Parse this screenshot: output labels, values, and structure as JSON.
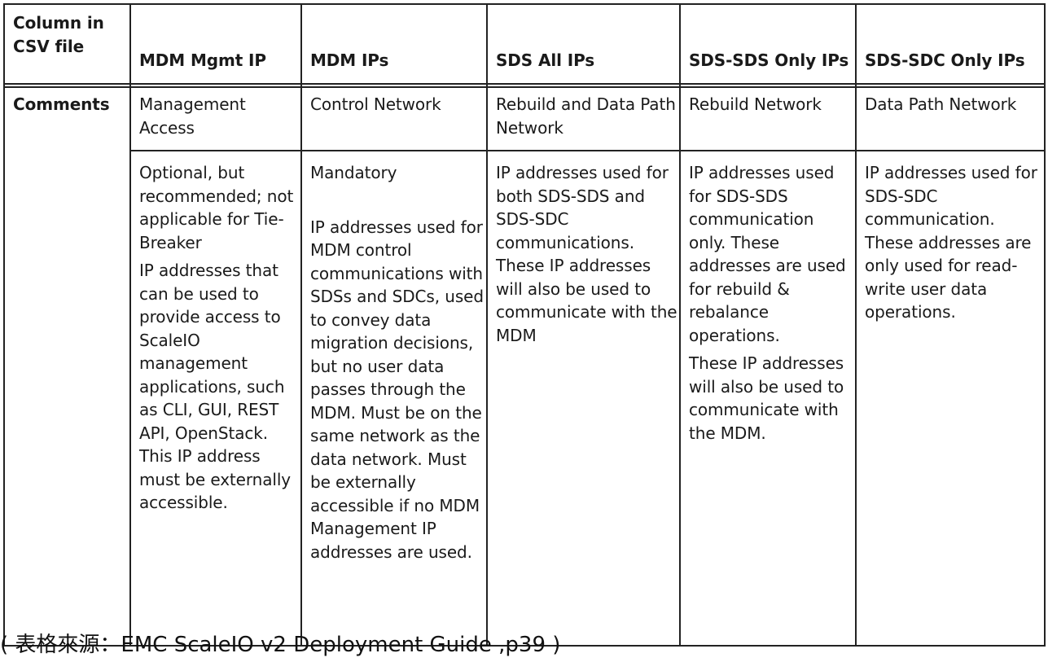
{
  "table": {
    "corner_label": "Column in CSV file",
    "headers": [
      "MDM Mgmt IP",
      "MDM IPs",
      "SDS All IPs",
      "SDS-SDS Only IPs",
      "SDS-SDC Only IPs"
    ],
    "row_label": "Comments",
    "network_roles": [
      "Management Access",
      "Control Network",
      "Rebuild and Data Path Network",
      "Rebuild Network",
      "Data Path Network"
    ],
    "details": {
      "mdm_mgmt_ip": [
        "Optional, but recommended; not applicable for Tie-Breaker",
        "IP addresses that can be used to provide access to ScaleIO management applications, such as CLI, GUI, REST API, OpenStack. This IP address must be externally accessible."
      ],
      "mdm_ips": [
        "Mandatory",
        "IP addresses used for MDM control communications with SDSs and SDCs, used to convey data migration decisions, but no user data passes through the MDM. Must be on the same network as the data network. Must be externally accessible if no MDM Management IP addresses are used."
      ],
      "sds_all_ips": [
        "IP addresses used for both SDS-SDS and SDS-SDC communications. These IP addresses will also be used to communicate with the MDM"
      ],
      "sds_sds_only_ips": [
        "IP addresses used for SDS-SDS communication only. These addresses are used for rebuild & rebalance operations.",
        "These IP addresses will also be used to communicate with the MDM."
      ],
      "sds_sdc_only_ips": [
        "IP addresses used for SDS-SDC communication. These addresses are only used for read-write user data operations."
      ]
    }
  },
  "caption": "( 表格來源：EMC ScaleIO v2 Deployment Guide ,p39 )"
}
